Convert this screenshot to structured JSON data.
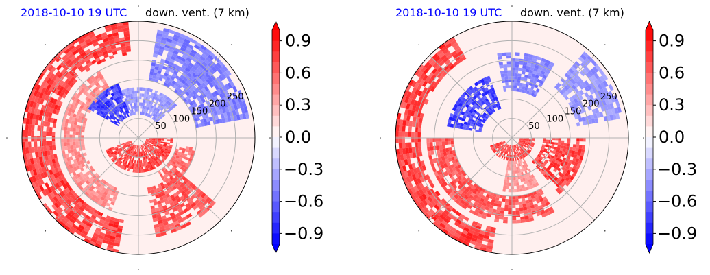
{
  "chart_data": [
    {
      "type": "heatmap",
      "projection": "polar",
      "title_left": "2018-10-10 19 UTC",
      "title_right": "down. vent. (7 km)",
      "radial_ticks": [
        "50",
        "100",
        "150",
        "200",
        "250"
      ],
      "radial_values": [
        50,
        100,
        150,
        200,
        250
      ],
      "rlim": [
        0,
        300
      ],
      "grid": true,
      "colormap": "bwr",
      "clim": [
        -1.0,
        1.0
      ],
      "colorbar_ticks": [
        "0.9",
        "0.6",
        "0.3",
        "0.0",
        "−0.3",
        "−0.6",
        "−0.9"
      ],
      "colorbar_values": [
        0.9,
        0.6,
        0.3,
        0.0,
        -0.3,
        -0.6,
        -0.9
      ],
      "features": [
        {
          "value": 0.9,
          "r0": 215,
          "r1": 300,
          "t0": 95,
          "t1": 260
        },
        {
          "value": 0.55,
          "r0": 140,
          "r1": 200,
          "t0": 120,
          "t1": 250
        },
        {
          "value": -0.9,
          "r0": 60,
          "r1": 150,
          "t0": 110,
          "t1": 150
        },
        {
          "value": 0.9,
          "r0": 20,
          "r1": 90,
          "t0": 200,
          "t1": 360
        },
        {
          "value": 0.7,
          "r0": 100,
          "r1": 150,
          "t0": 300,
          "t1": 350
        },
        {
          "value": -0.6,
          "r0": 150,
          "r1": 290,
          "t0": 10,
          "t1": 80
        },
        {
          "value": -0.5,
          "r0": 60,
          "r1": 130,
          "t0": 40,
          "t1": 110
        },
        {
          "value": 0.8,
          "r0": 130,
          "r1": 260,
          "t0": 280,
          "t1": 320
        }
      ]
    },
    {
      "type": "heatmap",
      "projection": "polar",
      "title_left": "2018-10-10 19 UTC",
      "title_right": "down. vent. (7 km)",
      "radial_ticks": [
        "50",
        "100",
        "150",
        "200",
        "250"
      ],
      "radial_values": [
        50,
        100,
        150,
        200,
        250
      ],
      "rlim": [
        0,
        300
      ],
      "grid": true,
      "colormap": "bwr",
      "clim": [
        -1.0,
        1.0
      ],
      "colorbar_ticks": [
        "0.9",
        "0.6",
        "0.3",
        "0.0",
        "−0.3",
        "−0.6",
        "−0.9"
      ],
      "colorbar_values": [
        0.9,
        0.6,
        0.3,
        0.0,
        -0.3,
        -0.6,
        -0.9
      ],
      "features": [
        {
          "value": 0.9,
          "r0": 235,
          "r1": 300,
          "t0": 120,
          "t1": 260
        },
        {
          "value": 0.8,
          "r0": 150,
          "r1": 220,
          "t0": 180,
          "t1": 300
        },
        {
          "value": -0.9,
          "r0": 80,
          "r1": 170,
          "t0": 110,
          "t1": 170
        },
        {
          "value": 0.9,
          "r0": 20,
          "r1": 60,
          "t0": 200,
          "t1": 360
        },
        {
          "value": 0.9,
          "r0": 80,
          "r1": 190,
          "t0": 310,
          "t1": 360
        },
        {
          "value": -0.6,
          "r0": 120,
          "r1": 220,
          "t0": 60,
          "t1": 100
        },
        {
          "value": -0.5,
          "r0": 170,
          "r1": 290,
          "t0": 10,
          "t1": 50
        },
        {
          "value": 0.5,
          "r0": 60,
          "r1": 140,
          "t0": 260,
          "t1": 300
        }
      ]
    }
  ]
}
